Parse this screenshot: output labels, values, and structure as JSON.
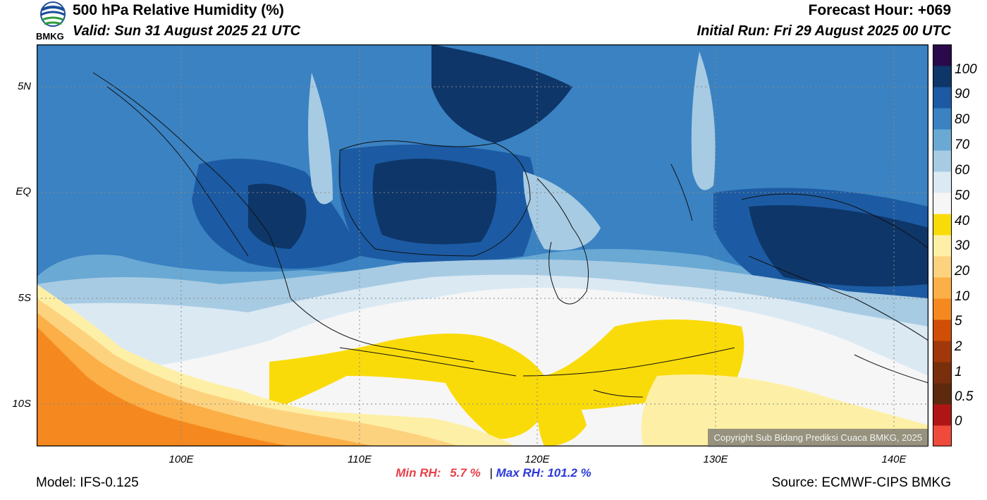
{
  "header": {
    "title": "500 hPa Relative Humidity (%)",
    "valid": "Valid: Sun 31 August 2025 21 UTC",
    "forecast_hour": "Forecast Hour: +069",
    "initial_run": "Initial Run: Fri 29 August 2025 00 UTC"
  },
  "logo": {
    "text": "BMKG"
  },
  "map": {
    "lat_labels": [
      "5N",
      "EQ",
      "5S",
      "10S"
    ],
    "lon_labels": [
      "100E",
      "110E",
      "120E",
      "130E",
      "140E"
    ]
  },
  "colorbar": {
    "labels": [
      "100",
      "90",
      "80",
      "70",
      "60",
      "50",
      "40",
      "30",
      "20",
      "10",
      "5",
      "2",
      "1",
      "0.5",
      "0"
    ],
    "colors": [
      "#f04a3c",
      "#b01515",
      "#5e2a0f",
      "#7a2f0c",
      "#a0380a",
      "#d04e05",
      "#f5891f",
      "#fbaf46",
      "#fdd27f",
      "#fdf0a6",
      "#fadb0a",
      "#f6f6f6",
      "#dbe9f3",
      "#a7cbe3",
      "#6aa9d4",
      "#3a82c2",
      "#1c5ba3",
      "#0e3669",
      "#2a0a4a"
    ]
  },
  "stats": {
    "min_label": "Min RH:",
    "min_value": "5.7 %",
    "separator": "|",
    "max_label": "Max RH:",
    "max_value": "101.2 %"
  },
  "copyright": "Copyright Sub Bidang Prediksi Cuaca BMKG, 2025",
  "footer": {
    "model": "Model: IFS-0.125",
    "source": "Source: ECMWF-CIPS BMKG"
  }
}
